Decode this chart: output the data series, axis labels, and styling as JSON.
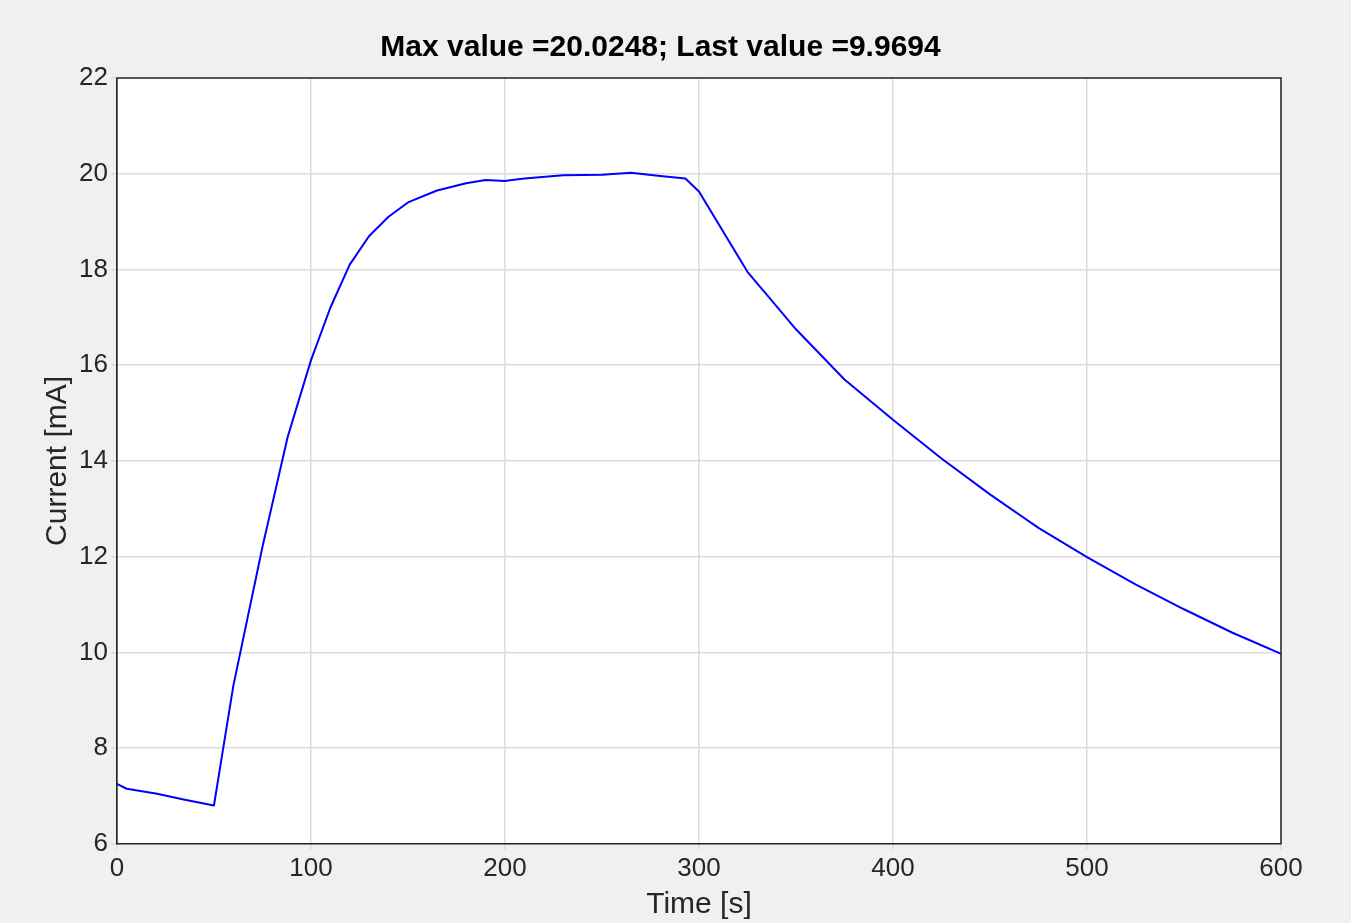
{
  "chart_data": {
    "type": "line",
    "title": "Max value =20.0248; Last value =9.9694",
    "xlabel": "Time [s]",
    "ylabel": "Current [mA]",
    "x": [
      0,
      5,
      20,
      35,
      50,
      60,
      75,
      88,
      100,
      110,
      120,
      130,
      140,
      150,
      165,
      180,
      190,
      200,
      210,
      230,
      250,
      265,
      280,
      293,
      300,
      325,
      350,
      375,
      400,
      425,
      450,
      475,
      500,
      525,
      550,
      575,
      600
    ],
    "series": [
      {
        "color": "#0000ff",
        "values": [
          7.25,
          7.15,
          7.05,
          6.92,
          6.8,
          9.3,
          12.2,
          14.5,
          16.1,
          17.2,
          18.1,
          18.7,
          19.1,
          19.4,
          19.65,
          19.8,
          19.87,
          19.85,
          19.9,
          19.97,
          19.98,
          20.02,
          19.95,
          19.9,
          19.63,
          17.95,
          16.75,
          15.7,
          14.86,
          14.05,
          13.3,
          12.6,
          11.99,
          11.42,
          10.9,
          10.41,
          9.97
        ]
      }
    ],
    "xlim": [
      0,
      600
    ],
    "xticks": [
      0,
      100,
      200,
      300,
      400,
      500,
      600
    ],
    "ylim": [
      6,
      22
    ],
    "yticks": [
      6,
      8,
      10,
      12,
      14,
      16,
      18,
      20,
      22
    ],
    "grid": true,
    "legend": false,
    "marker": "none",
    "line_style": "solid"
  }
}
